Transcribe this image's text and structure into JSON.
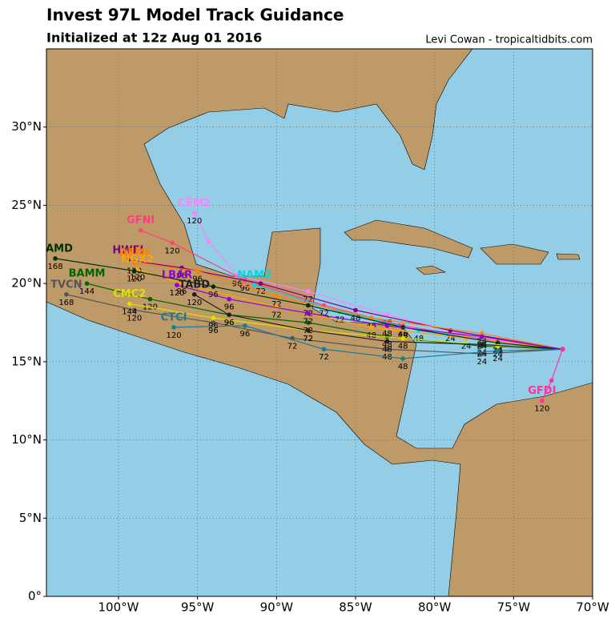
{
  "chart_data": {
    "type": "map",
    "title": "Invest 97L Model Track Guidance",
    "subtitle": "Initialized at 12z Aug 01 2016",
    "credit": "Levi Cowan - tropicaltidbits.com",
    "xlim": [
      -104.56,
      -70
    ],
    "ylim": [
      0,
      35
    ],
    "xticks": [
      {
        "value": -100,
        "label": "100°W"
      },
      {
        "value": -95,
        "label": "95°W"
      },
      {
        "value": -90,
        "label": "90°W"
      },
      {
        "value": -85,
        "label": "85°W"
      },
      {
        "value": -80,
        "label": "80°W"
      },
      {
        "value": -75,
        "label": "75°W"
      },
      {
        "value": -70,
        "label": "70°W"
      }
    ],
    "yticks": [
      {
        "value": 0,
        "label": "0°"
      },
      {
        "value": 5,
        "label": "5°N"
      },
      {
        "value": 10,
        "label": "10°N"
      },
      {
        "value": 15,
        "label": "15°N"
      },
      {
        "value": 20,
        "label": "20°N"
      },
      {
        "value": 25,
        "label": "25°N"
      },
      {
        "value": 30,
        "label": "30°N"
      }
    ],
    "grid": true,
    "series": [
      {
        "name": "CEM2",
        "color": "#ff80ff",
        "x": [
          -71.9,
          -77,
          -83,
          -88,
          -92.5,
          -94.3,
          -95.2
        ],
        "values": [
          15.8,
          16.5,
          18,
          19.5,
          20.5,
          22.7,
          24.5
        ],
        "hours": [
          null,
          "24",
          "48",
          "72",
          "96",
          null,
          "120"
        ]
      },
      {
        "name": "GFNI",
        "color": "#ff4080",
        "x": [
          -71.9,
          -76,
          -82,
          -87,
          -92,
          -96.6,
          -98.6
        ],
        "values": [
          15.8,
          16.3,
          17.3,
          18.6,
          20.2,
          22.6,
          23.4
        ],
        "hours": [
          null,
          "24",
          "48",
          "72",
          "96",
          "120",
          null
        ]
      },
      {
        "name": "NAM2",
        "color": "#00d8e0",
        "x": [
          -71.9,
          -76,
          -81,
          -86,
          -91.4
        ],
        "values": [
          15.8,
          16.2,
          17,
          18.2,
          19.9
        ],
        "hours": [
          null,
          "24",
          "48",
          "72",
          null
        ]
      },
      {
        "name": "HWFI",
        "color": "#800080",
        "x": [
          -71.9,
          -79,
          -85,
          -91,
          -96,
          -99.4
        ],
        "values": [
          15.8,
          17,
          18.3,
          20,
          21,
          21.5
        ],
        "hours": [
          null,
          "24",
          "48",
          "72",
          "96",
          null
        ]
      },
      {
        "name": "AEMI",
        "color": "#ff8000",
        "x": [
          -71.9,
          -77,
          -84,
          -90,
          -95,
          -99
        ],
        "values": [
          15.8,
          16.8,
          17.8,
          19.2,
          20.8,
          21.3
        ],
        "hours": [
          null,
          "24",
          "48",
          "72",
          "96",
          "120"
        ]
      },
      {
        "name": "NGX2",
        "color": "#ffa500",
        "x": [
          -71.9,
          -78,
          -84,
          -90,
          -96,
          -98.8
        ],
        "values": [
          15.8,
          16.5,
          17.2,
          18.5,
          20,
          20.9
        ],
        "hours": [
          null,
          "24",
          "48",
          "72",
          "96",
          "120"
        ]
      },
      {
        "name": "BAMD",
        "color": "#003000",
        "x": [
          -71.9,
          -76,
          -82,
          -88,
          -94,
          -99,
          -104
        ],
        "values": [
          15.8,
          16.2,
          17.2,
          18.6,
          19.8,
          20.8,
          21.6
        ],
        "hours": [
          null,
          "24",
          "48",
          "72",
          "96",
          "120",
          "168"
        ]
      },
      {
        "name": "BAMM",
        "color": "#006400",
        "x": [
          -71.9,
          -77,
          -83,
          -88,
          -93,
          -98,
          -102
        ],
        "values": [
          15.8,
          16,
          16.6,
          17.5,
          18,
          19,
          20
        ],
        "hours": [
          null,
          "24",
          "48",
          "72",
          "96",
          "120",
          "144"
        ]
      },
      {
        "name": "TVCN",
        "color": "#555555",
        "x": [
          -71.9,
          -77,
          -83,
          -89,
          -94,
          -99,
          -103.3
        ],
        "values": [
          15.8,
          15.5,
          15.8,
          16.5,
          17.5,
          18.3,
          19.3
        ],
        "hours": [
          null,
          "24",
          "48",
          "72",
          "96",
          "120",
          "168"
        ]
      },
      {
        "name": "CMC2",
        "color": "#e0e000",
        "x": [
          -71.9,
          -76,
          -82,
          -88,
          -94,
          -99.3
        ],
        "values": [
          15.8,
          16,
          16.5,
          17,
          17.8,
          18.7
        ],
        "hours": [
          null,
          "24",
          "48",
          "72",
          "96",
          "144"
        ]
      },
      {
        "name": "LBAR",
        "color": "#9400d3",
        "x": [
          -71.9,
          -77,
          -83,
          -88,
          -93,
          -96.3
        ],
        "values": [
          15.8,
          16.6,
          17.3,
          18.1,
          19,
          19.9
        ],
        "hours": [
          null,
          "24",
          "48",
          "72",
          "96",
          "120"
        ]
      },
      {
        "name": "TABD",
        "color": "#202020",
        "x": [
          -71.9,
          -77,
          -83,
          -88,
          -93,
          -95.2
        ],
        "values": [
          15.8,
          16.1,
          16.3,
          17,
          18,
          19.3
        ],
        "hours": [
          null,
          "24",
          "48",
          "72",
          "96",
          "120"
        ]
      },
      {
        "name": "CTCI",
        "color": "#1a7a9a",
        "x": [
          -71.9,
          -76,
          -82,
          -87,
          -92,
          -96.5
        ],
        "values": [
          15.8,
          15.7,
          15.2,
          15.8,
          17.3,
          17.2
        ],
        "hours": [
          null,
          "24",
          "48",
          "72",
          "96",
          "120"
        ]
      },
      {
        "name": "GFDI",
        "color": "#ff3399",
        "x": [
          -71.9,
          -72.6,
          -73.2
        ],
        "values": [
          15.8,
          13.8,
          12.5
        ],
        "hours": [
          null,
          null,
          "120"
        ]
      }
    ]
  }
}
